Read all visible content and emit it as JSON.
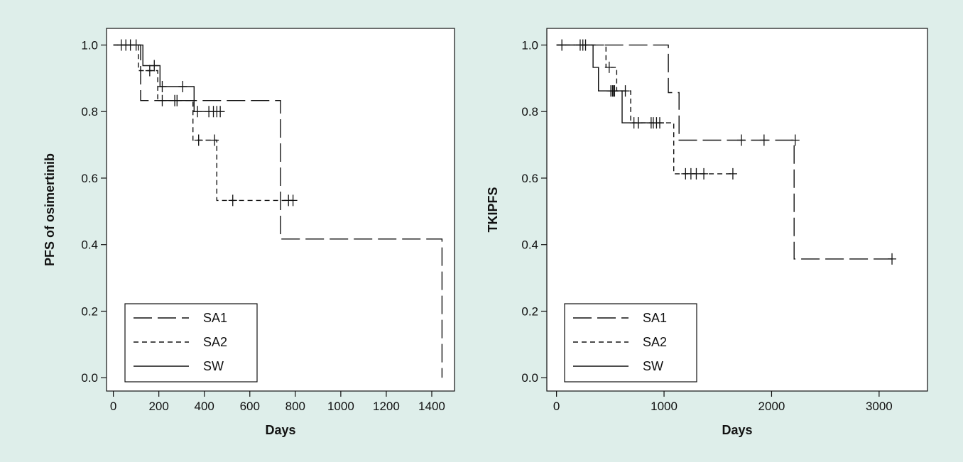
{
  "colors": {
    "background": "#deeeea",
    "panel": "#ffffff",
    "ink": "#111111"
  },
  "chart_data": [
    {
      "type": "line",
      "step": true,
      "title": "",
      "xlabel": "Days",
      "ylabel": "PFS of osimertinib",
      "xlim": [
        -30,
        1500
      ],
      "ylim": [
        -0.04,
        1.05
      ],
      "xticks": [
        0,
        200,
        400,
        600,
        800,
        1000,
        1200,
        1400
      ],
      "yticks": [
        0.0,
        0.2,
        0.4,
        0.6,
        0.8,
        1.0
      ],
      "legend_position": "bottom-left",
      "series": [
        {
          "name": "SA1",
          "dash": "long-dash",
          "points": [
            [
              0,
              1.0
            ],
            [
              120,
              1.0
            ],
            [
              120,
              0.833
            ],
            [
              735,
              0.833
            ],
            [
              735,
              0.417
            ],
            [
              1445,
              0.417
            ],
            [
              1445,
              0.0
            ]
          ],
          "censored": [
            [
              770,
              0.533
            ],
            [
              790,
              0.533
            ]
          ]
        },
        {
          "name": "SA2",
          "dash": "short-dash",
          "points": [
            [
              0,
              1.0
            ],
            [
              110,
              1.0
            ],
            [
              110,
              0.923
            ],
            [
              195,
              0.923
            ],
            [
              195,
              0.833
            ],
            [
              350,
              0.833
            ],
            [
              350,
              0.714
            ],
            [
              455,
              0.714
            ],
            [
              455,
              0.533
            ],
            [
              790,
              0.533
            ]
          ],
          "censored": [
            [
              160,
              0.923
            ],
            [
              215,
              0.833
            ],
            [
              270,
              0.833
            ],
            [
              280,
              0.833
            ],
            [
              375,
              0.714
            ],
            [
              445,
              0.714
            ],
            [
              525,
              0.533
            ]
          ]
        },
        {
          "name": "SW",
          "dash": "solid",
          "points": [
            [
              0,
              1.0
            ],
            [
              130,
              1.0
            ],
            [
              130,
              0.938
            ],
            [
              205,
              0.938
            ],
            [
              205,
              0.875
            ],
            [
              355,
              0.875
            ],
            [
              355,
              0.8
            ],
            [
              490,
              0.8
            ]
          ],
          "censored": [
            [
              35,
              1.0
            ],
            [
              55,
              1.0
            ],
            [
              75,
              1.0
            ],
            [
              100,
              1.0
            ],
            [
              180,
              0.938
            ],
            [
              215,
              0.875
            ],
            [
              305,
              0.875
            ],
            [
              370,
              0.8
            ],
            [
              420,
              0.8
            ],
            [
              440,
              0.8
            ],
            [
              455,
              0.8
            ],
            [
              470,
              0.8
            ]
          ]
        }
      ]
    },
    {
      "type": "line",
      "step": true,
      "title": "",
      "xlabel": "Days",
      "ylabel": "TKIPFS",
      "xlim": [
        -90,
        3450
      ],
      "ylim": [
        -0.04,
        1.05
      ],
      "xticks": [
        0,
        1000,
        2000,
        3000
      ],
      "yticks": [
        0.0,
        0.2,
        0.4,
        0.6,
        0.8,
        1.0
      ],
      "legend_position": "bottom-left",
      "series": [
        {
          "name": "SA1",
          "dash": "long-dash",
          "points": [
            [
              0,
              1.0
            ],
            [
              1040,
              1.0
            ],
            [
              1040,
              0.857
            ],
            [
              1140,
              0.857
            ],
            [
              1140,
              0.714
            ],
            [
              2210,
              0.714
            ],
            [
              2210,
              0.357
            ],
            [
              3120,
              0.357
            ]
          ],
          "censored": [
            [
              1720,
              0.714
            ],
            [
              1930,
              0.714
            ],
            [
              2220,
              0.714
            ],
            [
              3120,
              0.357
            ]
          ]
        },
        {
          "name": "SA2",
          "dash": "short-dash",
          "points": [
            [
              0,
              1.0
            ],
            [
              460,
              1.0
            ],
            [
              460,
              0.933
            ],
            [
              560,
              0.933
            ],
            [
              560,
              0.862
            ],
            [
              690,
              0.862
            ],
            [
              690,
              0.766
            ],
            [
              1090,
              0.766
            ],
            [
              1090,
              0.613
            ],
            [
              1640,
              0.613
            ]
          ],
          "censored": [
            [
              490,
              0.933
            ],
            [
              530,
              0.862
            ],
            [
              720,
              0.766
            ],
            [
              760,
              0.766
            ],
            [
              900,
              0.766
            ],
            [
              1200,
              0.613
            ],
            [
              1250,
              0.613
            ],
            [
              1300,
              0.613
            ],
            [
              1370,
              0.613
            ],
            [
              1640,
              0.613
            ]
          ]
        },
        {
          "name": "SW",
          "dash": "solid",
          "points": [
            [
              0,
              1.0
            ],
            [
              340,
              1.0
            ],
            [
              340,
              0.933
            ],
            [
              390,
              0.933
            ],
            [
              390,
              0.862
            ],
            [
              610,
              0.862
            ],
            [
              610,
              0.766
            ],
            [
              1000,
              0.766
            ]
          ],
          "censored": [
            [
              50,
              1.0
            ],
            [
              220,
              1.0
            ],
            [
              245,
              1.0
            ],
            [
              270,
              1.0
            ],
            [
              505,
              0.862
            ],
            [
              520,
              0.862
            ],
            [
              540,
              0.862
            ],
            [
              640,
              0.862
            ],
            [
              760,
              0.766
            ],
            [
              880,
              0.766
            ],
            [
              930,
              0.766
            ],
            [
              960,
              0.766
            ]
          ]
        }
      ]
    }
  ]
}
